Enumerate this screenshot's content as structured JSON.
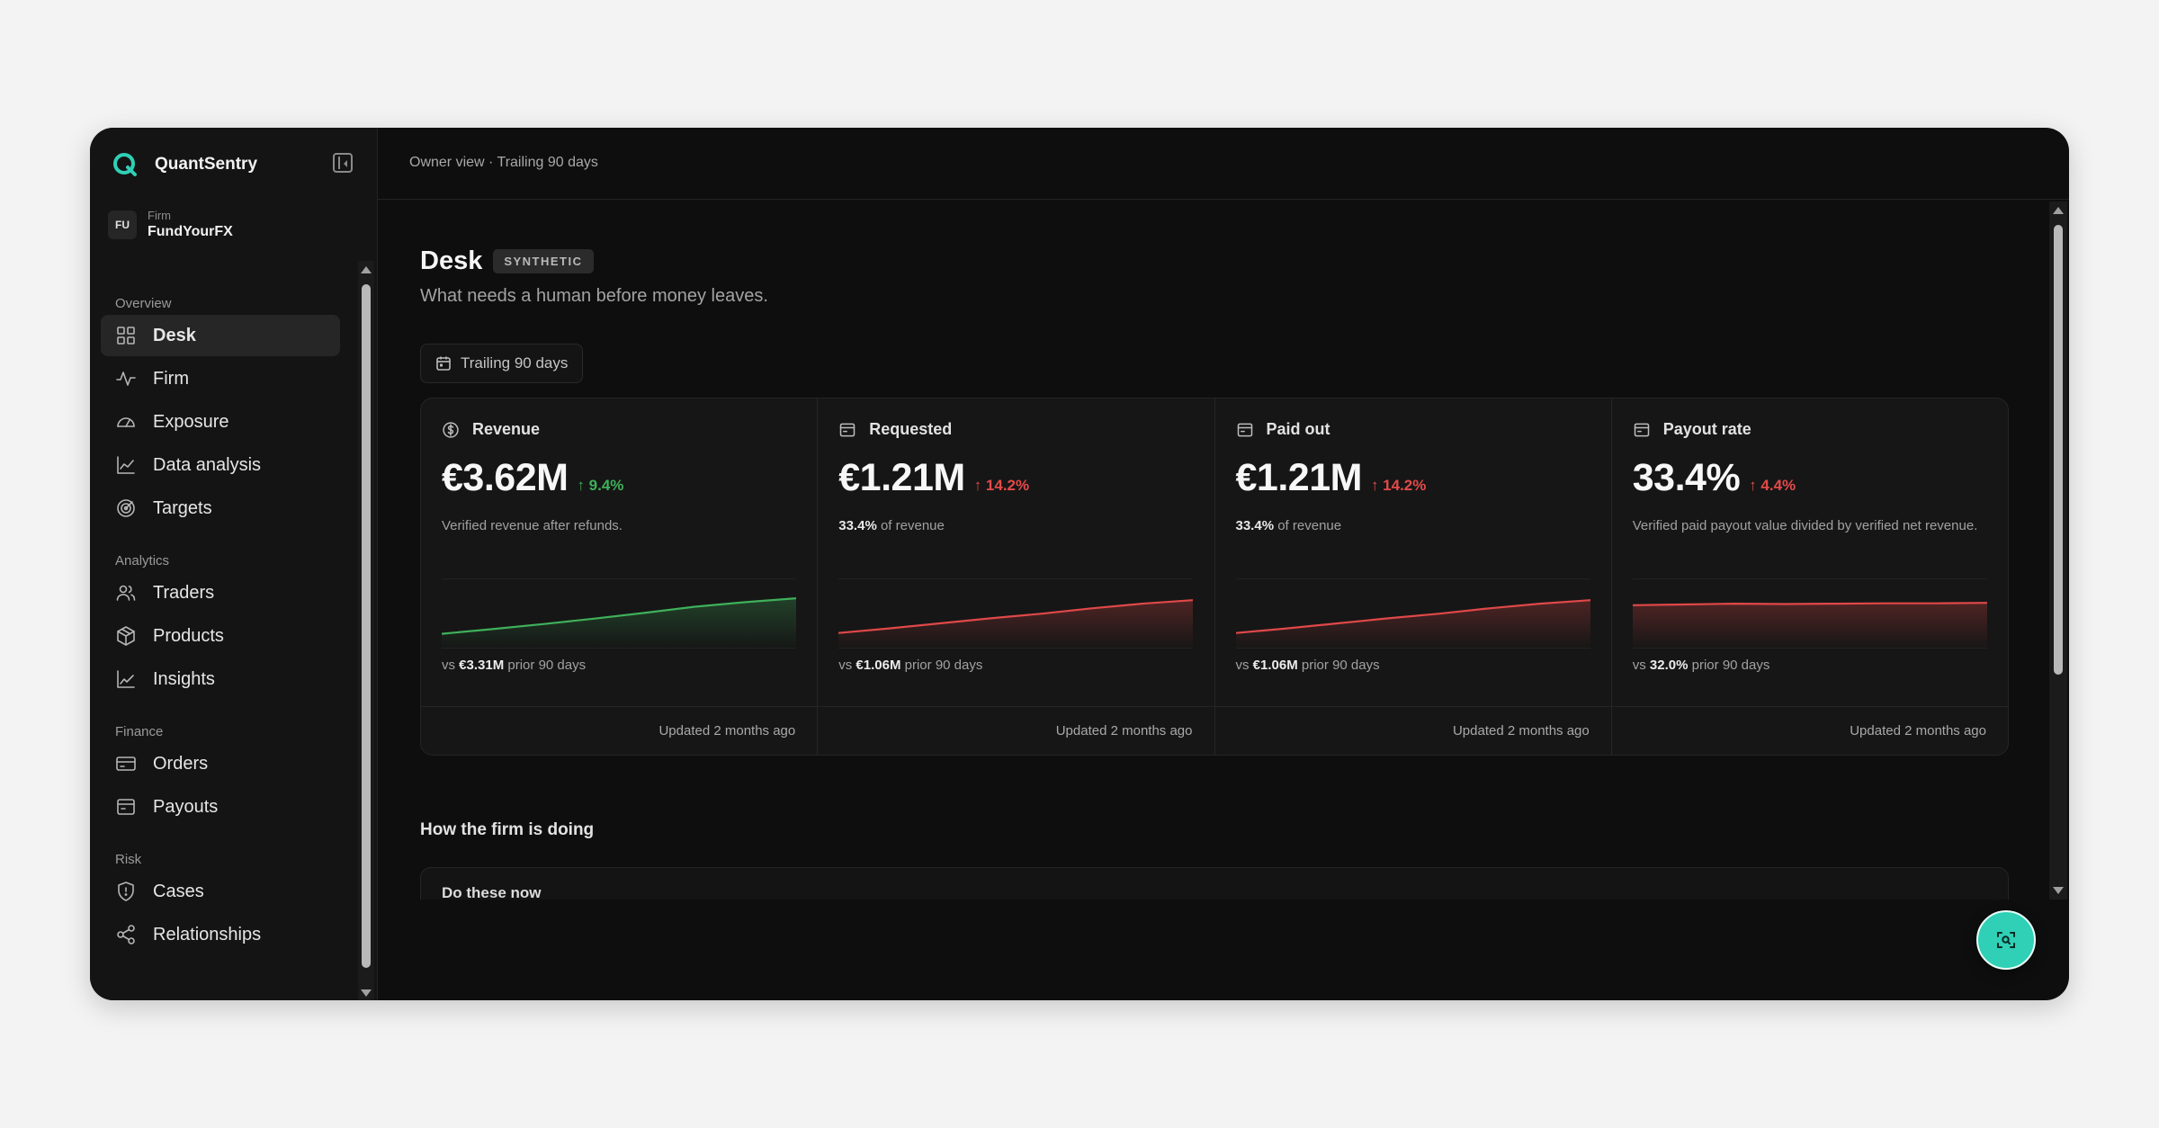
{
  "app": {
    "name": "QuantSentry",
    "accent": "#2fd0b5"
  },
  "firm": {
    "label": "Firm",
    "initials": "FU",
    "name": "FundYourFX"
  },
  "sidebar": {
    "sections": [
      {
        "title": "Overview",
        "items": [
          {
            "label": "Desk",
            "icon": "grid-icon",
            "active": true
          },
          {
            "label": "Firm",
            "icon": "activity-icon"
          },
          {
            "label": "Exposure",
            "icon": "gauge-icon"
          },
          {
            "label": "Data analysis",
            "icon": "line-chart-icon"
          },
          {
            "label": "Targets",
            "icon": "target-icon"
          }
        ]
      },
      {
        "title": "Analytics",
        "items": [
          {
            "label": "Traders",
            "icon": "users-icon"
          },
          {
            "label": "Products",
            "icon": "package-icon"
          },
          {
            "label": "Insights",
            "icon": "trend-icon"
          }
        ]
      },
      {
        "title": "Finance",
        "items": [
          {
            "label": "Orders",
            "icon": "card-icon"
          },
          {
            "label": "Payouts",
            "icon": "wallet-icon"
          }
        ]
      },
      {
        "title": "Risk",
        "items": [
          {
            "label": "Cases",
            "icon": "shield-icon"
          },
          {
            "label": "Relationships",
            "icon": "share-icon"
          }
        ]
      }
    ]
  },
  "topbar": {
    "text": "Owner view · Trailing 90 days"
  },
  "page": {
    "title": "Desk",
    "badge": "SYNTHETIC",
    "subtitle": "What needs a human before money leaves.",
    "range_label": "Trailing 90 days"
  },
  "cards": [
    {
      "title": "Revenue",
      "icon": "dollar-icon",
      "value": "€3.62M",
      "delta": "↑ 9.4%",
      "tone": "good",
      "desc_bold": "",
      "desc": "Verified revenue after refunds.",
      "prior_prefix": "vs",
      "prior_value": "€3.31M",
      "prior_suffix": "prior 90 days",
      "updated": "Updated 2 months ago",
      "color": "#3fb05a",
      "trend": [
        0.08,
        0.2,
        0.33,
        0.47,
        0.62,
        0.78,
        0.9,
        1.0
      ]
    },
    {
      "title": "Requested",
      "icon": "wallet-icon",
      "value": "€1.21M",
      "delta": "↑ 14.2%",
      "tone": "bad",
      "desc_bold": "33.4%",
      "desc": " of revenue",
      "prior_prefix": "vs",
      "prior_value": "€1.06M",
      "prior_suffix": "prior 90 days",
      "updated": "Updated 2 months ago",
      "color": "#e04848",
      "trend": [
        0.1,
        0.22,
        0.35,
        0.48,
        0.6,
        0.74,
        0.86,
        0.95
      ]
    },
    {
      "title": "Paid out",
      "icon": "wallet-icon",
      "value": "€1.21M",
      "delta": "↑ 14.2%",
      "tone": "bad",
      "desc_bold": "33.4%",
      "desc": " of revenue",
      "prior_prefix": "vs",
      "prior_value": "€1.06M",
      "prior_suffix": "prior 90 days",
      "updated": "Updated 2 months ago",
      "color": "#e04848",
      "trend": [
        0.1,
        0.22,
        0.35,
        0.48,
        0.6,
        0.74,
        0.86,
        0.95
      ]
    },
    {
      "title": "Payout rate",
      "icon": "wallet-icon",
      "value": "33.4%",
      "delta": "↑ 4.4%",
      "tone": "bad",
      "desc_bold": "",
      "desc": "Verified paid payout value divided by verified net revenue.",
      "prior_prefix": "vs",
      "prior_value": "32.0%",
      "prior_suffix": "prior 90 days",
      "updated": "Updated 2 months ago",
      "color": "#e04848",
      "trend": [
        0.82,
        0.84,
        0.86,
        0.85,
        0.86,
        0.87,
        0.87,
        0.88
      ]
    }
  ],
  "section": {
    "title": "How the firm is doing",
    "first_panel": "Do these now"
  },
  "fab": {
    "icon": "scan-icon"
  }
}
